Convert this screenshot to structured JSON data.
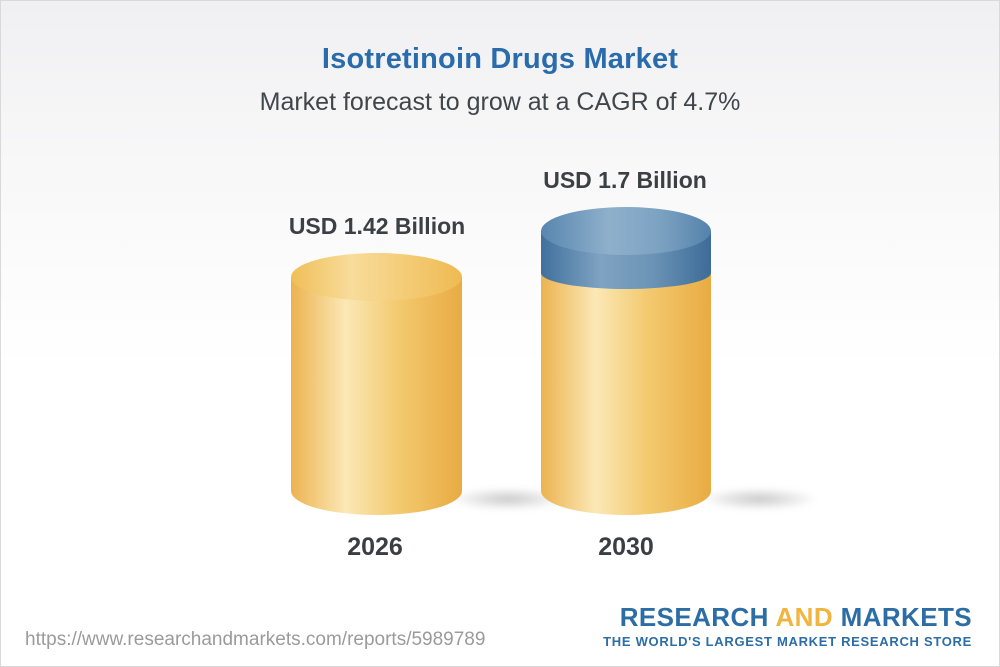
{
  "header": {
    "title": "Isotretinoin Drugs Market",
    "subtitle": "Market forecast to grow at a CAGR of 4.7%"
  },
  "chart_data": {
    "type": "bar",
    "variant": "3d-cylinder",
    "unit": "USD Billion",
    "categories": [
      "2026",
      "2030"
    ],
    "values": [
      1.42,
      1.7
    ],
    "bar_labels": [
      "USD 1.42 Billion",
      "USD 1.7 Billion"
    ],
    "cagr_percent": 4.7,
    "colors": {
      "base_segment": "#f3ca70",
      "growth_segment": "#6c94b6",
      "label_text": "#3c4045"
    },
    "axes": "none",
    "gridlines": false,
    "legend": "none"
  },
  "footer": {
    "url": "https://www.researchandmarkets.com/reports/5989789",
    "logo": {
      "word1": "RESEARCH ",
      "word2": "AND",
      "word3": " MARKETS",
      "tagline": "THE WORLD'S LARGEST MARKET RESEARCH STORE"
    }
  }
}
